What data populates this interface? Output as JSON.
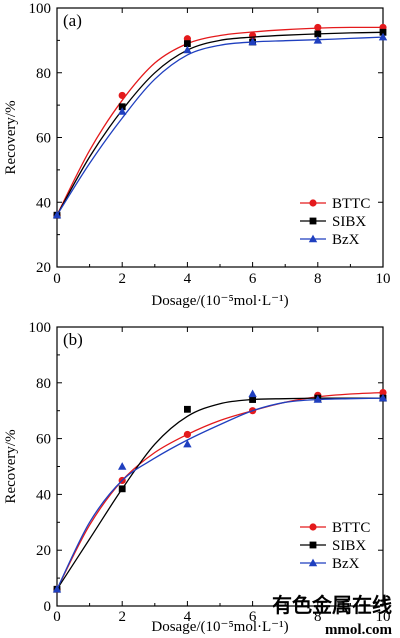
{
  "chart_data": [
    {
      "type": "line",
      "panel_label": "(a)",
      "xlabel": "Dosage/(10⁻⁵mol·L⁻¹)",
      "ylabel": "Recovery/%",
      "xlim": [
        0,
        10
      ],
      "ylim": [
        20,
        100
      ],
      "x_ticks": [
        "0",
        "2",
        "4",
        "6",
        "8",
        "10"
      ],
      "y_ticks": [
        "20",
        "40",
        "60",
        "80",
        "100"
      ],
      "grid": false,
      "legend": "bottom-right",
      "x": [
        0,
        2,
        4,
        6,
        8,
        10
      ],
      "series": [
        {
          "name": "BTTC",
          "marker": "circle",
          "color": "#e41a1c",
          "values": [
            36,
            73,
            90.5,
            91.5,
            94,
            94
          ],
          "fit": [
            [
              0,
              36
            ],
            [
              1,
              56
            ],
            [
              2,
              71.5
            ],
            [
              3,
              83
            ],
            [
              4,
              89
            ],
            [
              5,
              91.5
            ],
            [
              6,
              92.6
            ],
            [
              7,
              93.3
            ],
            [
              8,
              93.8
            ],
            [
              9,
              94
            ],
            [
              10,
              94
            ]
          ]
        },
        {
          "name": "SIBX",
          "marker": "square",
          "color": "#000000",
          "values": [
            36,
            69.5,
            89,
            89.5,
            92,
            92.5
          ],
          "fit": [
            [
              0,
              36
            ],
            [
              1,
              54
            ],
            [
              2,
              68.5
            ],
            [
              3,
              80
            ],
            [
              4,
              87
            ],
            [
              5,
              90
            ],
            [
              6,
              91
            ],
            [
              7,
              91.6
            ],
            [
              8,
              92
            ],
            [
              9,
              92.3
            ],
            [
              10,
              92.5
            ]
          ]
        },
        {
          "name": "BzX",
          "marker": "triangle",
          "color": "#1f3fbf",
          "values": [
            36,
            68,
            87,
            89.5,
            90,
            91
          ],
          "fit": [
            [
              0,
              36
            ],
            [
              1,
              52
            ],
            [
              2,
              66
            ],
            [
              3,
              78
            ],
            [
              4,
              85.5
            ],
            [
              5,
              88.5
            ],
            [
              6,
              89.5
            ],
            [
              7,
              89.9
            ],
            [
              8,
              90.2
            ],
            [
              9,
              90.6
            ],
            [
              10,
              91
            ]
          ]
        }
      ]
    },
    {
      "type": "line",
      "panel_label": "(b)",
      "xlabel": "Dosage/(10⁻⁵mol·L⁻¹)",
      "ylabel": "Recovery/%",
      "xlim": [
        0,
        10
      ],
      "ylim": [
        0,
        100
      ],
      "x_ticks": [
        "0",
        "2",
        "4",
        "6",
        "8",
        "10"
      ],
      "y_ticks": [
        "0",
        "20",
        "40",
        "60",
        "80",
        "100"
      ],
      "grid": false,
      "legend": "bottom-right",
      "x": [
        0,
        2,
        4,
        6,
        8,
        10
      ],
      "series": [
        {
          "name": "BTTC",
          "marker": "circle",
          "color": "#e41a1c",
          "values": [
            6,
            45,
            61.5,
            70,
            75.5,
            76.5
          ],
          "fit": [
            [
              0,
              6
            ],
            [
              1,
              29
            ],
            [
              2,
              45
            ],
            [
              3,
              55
            ],
            [
              4,
              61.5
            ],
            [
              5,
              66.5
            ],
            [
              6,
              70
            ],
            [
              7,
              73
            ],
            [
              8,
              75
            ],
            [
              9,
              76
            ],
            [
              10,
              76.5
            ]
          ]
        },
        {
          "name": "SIBX",
          "marker": "square",
          "color": "#000000",
          "values": [
            6,
            42,
            70.5,
            74,
            74.5,
            74.5
          ],
          "fit": [
            [
              0,
              6
            ],
            [
              1,
              24
            ],
            [
              2,
              42
            ],
            [
              3,
              58
            ],
            [
              4,
              68
            ],
            [
              5,
              72.5
            ],
            [
              6,
              74
            ],
            [
              7,
              74.3
            ],
            [
              8,
              74.5
            ],
            [
              9,
              74.5
            ],
            [
              10,
              74.5
            ]
          ]
        },
        {
          "name": "BzX",
          "marker": "triangle",
          "color": "#1f3fbf",
          "values": [
            6,
            50,
            58,
            76,
            74,
            74.5
          ],
          "fit": [
            [
              0,
              6
            ],
            [
              1,
              30
            ],
            [
              2,
              45
            ],
            [
              3,
              53
            ],
            [
              4,
              59.5
            ],
            [
              5,
              65
            ],
            [
              6,
              70
            ],
            [
              7,
              73
            ],
            [
              8,
              74
            ],
            [
              9,
              74.3
            ],
            [
              10,
              74.5
            ]
          ]
        }
      ]
    }
  ],
  "watermark": {
    "line1": "有色金属在线",
    "line2": "mmol.com"
  }
}
